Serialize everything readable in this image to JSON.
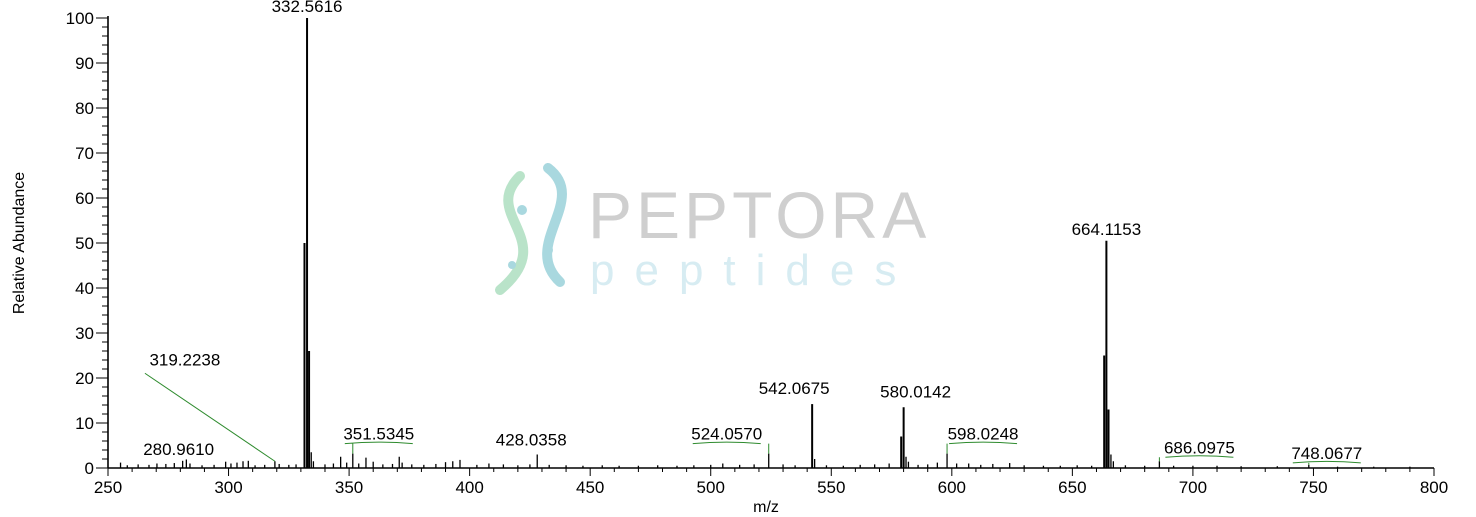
{
  "chart_data": {
    "type": "bar",
    "xlabel": "m/z",
    "ylabel": "Relative Abundance",
    "xlim": [
      250,
      800
    ],
    "ylim": [
      0,
      100
    ],
    "x_ticks": [
      "250",
      "300",
      "350",
      "400",
      "450",
      "500",
      "550",
      "600",
      "650",
      "700",
      "750",
      "800"
    ],
    "y_ticks": [
      "0",
      "10",
      "20",
      "30",
      "40",
      "50",
      "60",
      "70",
      "80",
      "90",
      "100"
    ],
    "colors": {
      "peaks": "#000000",
      "leaders": "#2e8b2e",
      "axis": "#000000"
    },
    "peaks": [
      {
        "mz": 255.2,
        "y": 1.2
      },
      {
        "mz": 258.0,
        "y": 0.6
      },
      {
        "mz": 262.5,
        "y": 0.8
      },
      {
        "mz": 267.0,
        "y": 0.7
      },
      {
        "mz": 270.3,
        "y": 1.0
      },
      {
        "mz": 274.0,
        "y": 0.9
      },
      {
        "mz": 277.5,
        "y": 1.1
      },
      {
        "mz": 280.961,
        "y": 1.6
      },
      {
        "mz": 282.5,
        "y": 1.9
      },
      {
        "mz": 284.0,
        "y": 1.0
      },
      {
        "mz": 289.0,
        "y": 0.6
      },
      {
        "mz": 294.0,
        "y": 0.7
      },
      {
        "mz": 298.8,
        "y": 1.4
      },
      {
        "mz": 301.0,
        "y": 1.0
      },
      {
        "mz": 303.5,
        "y": 1.2
      },
      {
        "mz": 306.0,
        "y": 1.5
      },
      {
        "mz": 308.2,
        "y": 1.6
      },
      {
        "mz": 311.0,
        "y": 0.6
      },
      {
        "mz": 315.0,
        "y": 0.7
      },
      {
        "mz": 319.2238,
        "y": 1.5
      },
      {
        "mz": 321.0,
        "y": 0.9
      },
      {
        "mz": 325.0,
        "y": 0.7
      },
      {
        "mz": 328.0,
        "y": 0.8
      },
      {
        "mz": 331.5,
        "y": 50.0
      },
      {
        "mz": 332.5616,
        "y": 100.0
      },
      {
        "mz": 333.4,
        "y": 26.0
      },
      {
        "mz": 334.3,
        "y": 3.5
      },
      {
        "mz": 335.2,
        "y": 1.5
      },
      {
        "mz": 340.0,
        "y": 0.8
      },
      {
        "mz": 343.5,
        "y": 1.0
      },
      {
        "mz": 346.5,
        "y": 2.5
      },
      {
        "mz": 349.0,
        "y": 1.2
      },
      {
        "mz": 351.5345,
        "y": 3.2
      },
      {
        "mz": 354.0,
        "y": 1.0
      },
      {
        "mz": 357.0,
        "y": 2.3
      },
      {
        "mz": 360.0,
        "y": 1.4
      },
      {
        "mz": 364.0,
        "y": 0.8
      },
      {
        "mz": 368.0,
        "y": 0.9
      },
      {
        "mz": 370.8,
        "y": 2.5
      },
      {
        "mz": 372.0,
        "y": 1.2
      },
      {
        "mz": 376.0,
        "y": 0.8
      },
      {
        "mz": 381.0,
        "y": 0.7
      },
      {
        "mz": 386.0,
        "y": 0.9
      },
      {
        "mz": 390.0,
        "y": 1.3
      },
      {
        "mz": 393.0,
        "y": 1.5
      },
      {
        "mz": 396.0,
        "y": 1.8
      },
      {
        "mz": 403.0,
        "y": 0.7
      },
      {
        "mz": 408.0,
        "y": 1.0
      },
      {
        "mz": 414.0,
        "y": 0.8
      },
      {
        "mz": 420.0,
        "y": 0.6
      },
      {
        "mz": 425.0,
        "y": 0.8
      },
      {
        "mz": 428.0358,
        "y": 3.0
      },
      {
        "mz": 433.0,
        "y": 0.7
      },
      {
        "mz": 440.0,
        "y": 0.6
      },
      {
        "mz": 447.0,
        "y": 0.5
      },
      {
        "mz": 455.0,
        "y": 0.6
      },
      {
        "mz": 462.0,
        "y": 0.5
      },
      {
        "mz": 470.0,
        "y": 0.5
      },
      {
        "mz": 478.0,
        "y": 0.6
      },
      {
        "mz": 486.0,
        "y": 0.5
      },
      {
        "mz": 493.0,
        "y": 0.6
      },
      {
        "mz": 500.0,
        "y": 0.7
      },
      {
        "mz": 505.0,
        "y": 1.0
      },
      {
        "mz": 512.0,
        "y": 0.7
      },
      {
        "mz": 518.0,
        "y": 0.8
      },
      {
        "mz": 524.057,
        "y": 3.2
      },
      {
        "mz": 530.0,
        "y": 0.8
      },
      {
        "mz": 535.0,
        "y": 0.6
      },
      {
        "mz": 542.0675,
        "y": 14.2
      },
      {
        "mz": 543.1,
        "y": 2.0
      },
      {
        "mz": 548.0,
        "y": 0.6
      },
      {
        "mz": 555.0,
        "y": 0.5
      },
      {
        "mz": 562.0,
        "y": 0.7
      },
      {
        "mz": 568.0,
        "y": 0.8
      },
      {
        "mz": 574.0,
        "y": 1.0
      },
      {
        "mz": 579.0,
        "y": 7.0
      },
      {
        "mz": 580.0142,
        "y": 13.5
      },
      {
        "mz": 581.0,
        "y": 2.5
      },
      {
        "mz": 582.0,
        "y": 1.4
      },
      {
        "mz": 586.0,
        "y": 0.7
      },
      {
        "mz": 590.0,
        "y": 0.8
      },
      {
        "mz": 594.0,
        "y": 1.2
      },
      {
        "mz": 598.0248,
        "y": 3.2
      },
      {
        "mz": 602.0,
        "y": 1.0
      },
      {
        "mz": 607.0,
        "y": 1.0
      },
      {
        "mz": 612.0,
        "y": 0.7
      },
      {
        "mz": 617.0,
        "y": 0.9
      },
      {
        "mz": 624.0,
        "y": 1.1
      },
      {
        "mz": 630.0,
        "y": 0.6
      },
      {
        "mz": 638.0,
        "y": 0.5
      },
      {
        "mz": 645.0,
        "y": 0.5
      },
      {
        "mz": 652.0,
        "y": 0.6
      },
      {
        "mz": 658.0,
        "y": 0.5
      },
      {
        "mz": 663.2,
        "y": 25.0
      },
      {
        "mz": 664.1153,
        "y": 50.5
      },
      {
        "mz": 665.0,
        "y": 13.0
      },
      {
        "mz": 666.0,
        "y": 3.0
      },
      {
        "mz": 667.0,
        "y": 1.5
      },
      {
        "mz": 672.0,
        "y": 0.6
      },
      {
        "mz": 680.0,
        "y": 0.5
      },
      {
        "mz": 686.0975,
        "y": 1.5
      },
      {
        "mz": 692.0,
        "y": 0.5
      },
      {
        "mz": 700.0,
        "y": 0.5
      },
      {
        "mz": 710.0,
        "y": 0.5
      },
      {
        "mz": 720.0,
        "y": 0.4
      },
      {
        "mz": 735.0,
        "y": 0.4
      },
      {
        "mz": 748.0677,
        "y": 0.7
      },
      {
        "mz": 760.0,
        "y": 0.3
      },
      {
        "mz": 775.0,
        "y": 0.3
      },
      {
        "mz": 790.0,
        "y": 0.3
      }
    ],
    "labels": [
      {
        "text": "332.5616",
        "mz": 332.5616,
        "y": 100.0,
        "leader": false
      },
      {
        "text": "664.1153",
        "mz": 664.1153,
        "y": 50.5,
        "leader": false
      },
      {
        "text": "319.2238",
        "mz": 319.2238,
        "y": 1.5,
        "leader": true
      },
      {
        "text": "542.0675",
        "mz": 542.0675,
        "y": 14.2,
        "leader": false
      },
      {
        "text": "580.0142",
        "mz": 580.0142,
        "y": 13.5,
        "leader": false
      },
      {
        "text": "280.9610",
        "mz": 280.961,
        "y": 1.6,
        "leader": false
      },
      {
        "text": "351.5345",
        "mz": 351.5345,
        "y": 3.2,
        "leader": true
      },
      {
        "text": "428.0358",
        "mz": 428.0358,
        "y": 3.0,
        "leader": false
      },
      {
        "text": "524.0570",
        "mz": 524.057,
        "y": 3.2,
        "leader": true
      },
      {
        "text": "598.0248",
        "mz": 598.0248,
        "y": 3.2,
        "leader": true
      },
      {
        "text": "686.0975",
        "mz": 686.0975,
        "y": 1.5,
        "leader": true
      },
      {
        "text": "748.0677",
        "mz": 748.0677,
        "y": 0.7,
        "leader": true
      }
    ]
  },
  "watermark": {
    "brand": "PEPTORA",
    "tagline": "peptides",
    "colors": {
      "brand_text": "#cfcfcf",
      "tagline_text": "#d7ecf2",
      "helix_teal": "#a9d8df",
      "helix_green": "#b9e3c9"
    }
  }
}
